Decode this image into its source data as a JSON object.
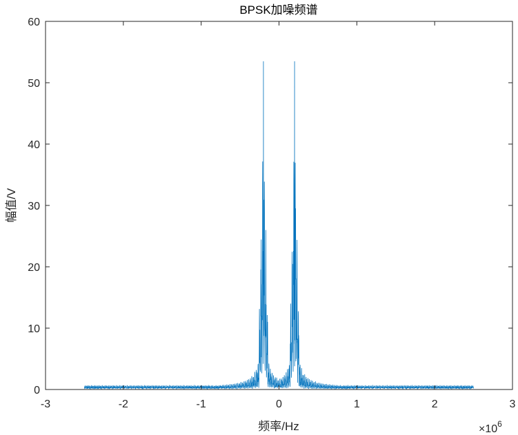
{
  "chart_data": {
    "type": "line",
    "title": "BPSK加噪频谱",
    "xlabel": "频率/Hz",
    "ylabel": "幅值/V",
    "x_exponent_label": "×10",
    "x_exponent": "6",
    "xlim": [
      -3,
      3
    ],
    "ylim": [
      0,
      60
    ],
    "xticks": [
      -3,
      -2,
      -1,
      0,
      1,
      2,
      3
    ],
    "yticks": [
      0,
      10,
      20,
      30,
      40,
      50,
      60
    ],
    "grid": false,
    "color": "#0072BD",
    "series": [
      {
        "x_range": [
          -2.5,
          2.5
        ],
        "carrier_freqs": [
          -0.2,
          0.2
        ],
        "peak_magnitude": 53.5,
        "lobe_peaks": [
          {
            "offset": 0.0,
            "value": 53.5
          },
          {
            "offset": 0.01,
            "value": 39.3
          },
          {
            "offset": 0.02,
            "value": 37
          },
          {
            "offset": 0.03,
            "value": 26
          },
          {
            "offset": 0.04,
            "value": 23
          },
          {
            "offset": 0.05,
            "value": 14
          }
        ],
        "noise_floor": 0.5
      }
    ]
  }
}
